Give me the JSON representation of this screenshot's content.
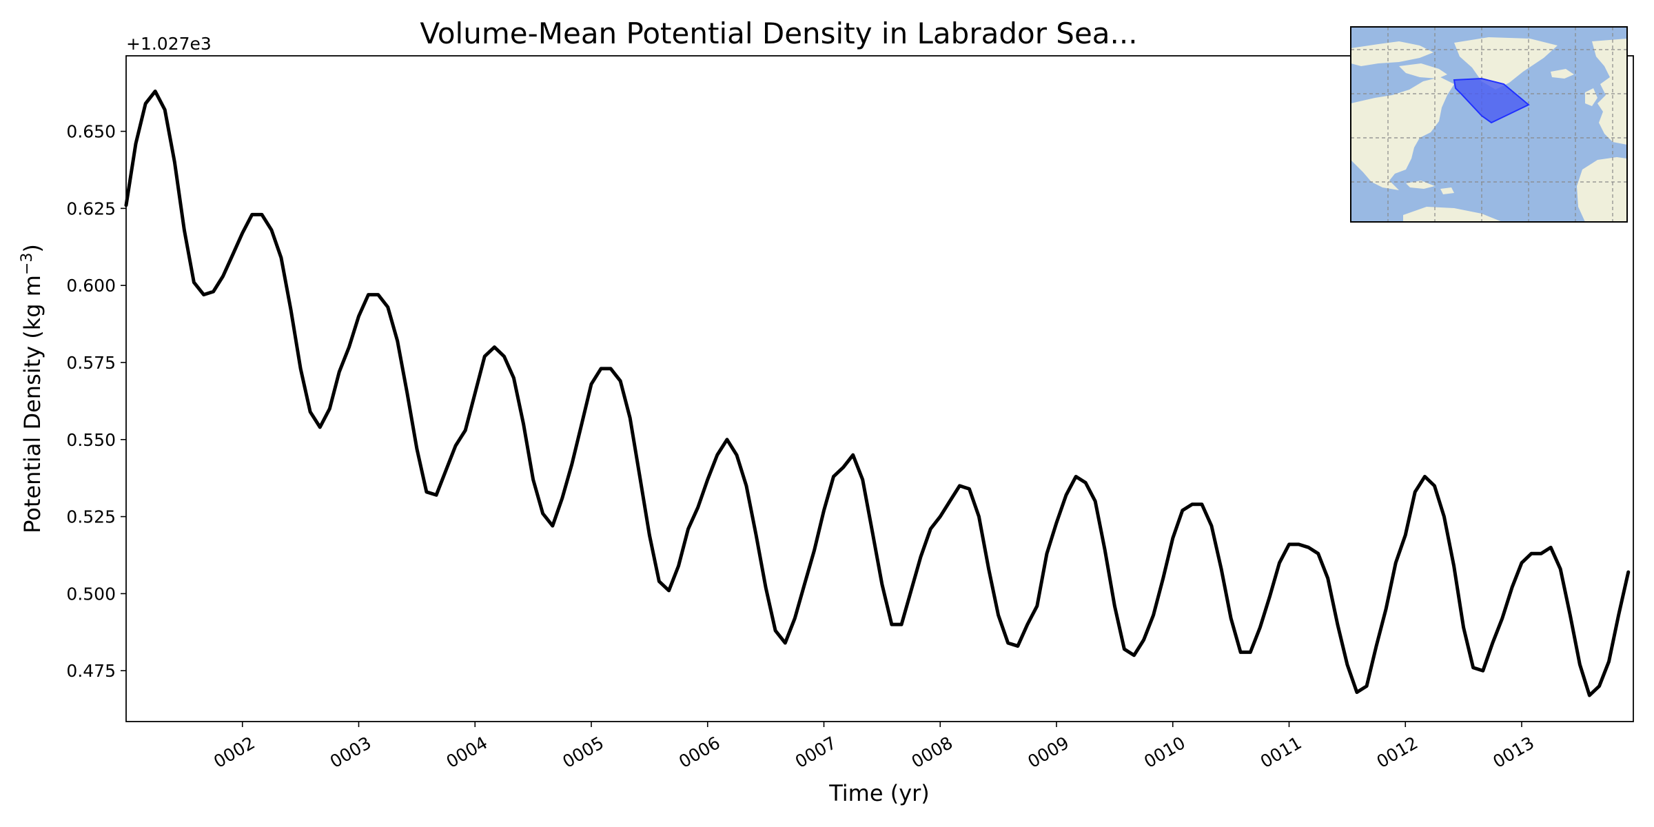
{
  "chart_data": {
    "type": "line",
    "title": "Volume-Mean Potential Density in Labrador Sea...",
    "xlabel": "Time (yr)",
    "ylabel_main": "Potential Density (kg m",
    "ylabel_sup": "−3",
    "ylabel_close": ")",
    "offset_text": "+1.027e3",
    "xlim": [
      1.0,
      13.96
    ],
    "ylim": [
      0.4585,
      0.6745
    ],
    "x_ticks": [
      {
        "value": 2,
        "label": "0002"
      },
      {
        "value": 3,
        "label": "0003"
      },
      {
        "value": 4,
        "label": "0004"
      },
      {
        "value": 5,
        "label": "0005"
      },
      {
        "value": 6,
        "label": "0006"
      },
      {
        "value": 7,
        "label": "0007"
      },
      {
        "value": 8,
        "label": "0008"
      },
      {
        "value": 9,
        "label": "0009"
      },
      {
        "value": 10,
        "label": "0010"
      },
      {
        "value": 11,
        "label": "0011"
      },
      {
        "value": 12,
        "label": "0012"
      },
      {
        "value": 13,
        "label": "0013"
      }
    ],
    "y_ticks": [
      {
        "value": 0.475,
        "label": "0.475"
      },
      {
        "value": 0.5,
        "label": "0.500"
      },
      {
        "value": 0.525,
        "label": "0.525"
      },
      {
        "value": 0.55,
        "label": "0.550"
      },
      {
        "value": 0.575,
        "label": "0.575"
      },
      {
        "value": 0.6,
        "label": "0.600"
      },
      {
        "value": 0.625,
        "label": "0.625"
      },
      {
        "value": 0.65,
        "label": "0.650"
      }
    ],
    "line_color": "#000000",
    "grid": false,
    "series": [
      {
        "x": [
          1.0,
          1.083,
          1.167,
          1.25,
          1.333,
          1.417,
          1.5,
          1.583,
          1.667,
          1.75,
          1.833,
          1.917,
          2.0,
          2.083,
          2.167,
          2.25,
          2.333,
          2.417,
          2.5,
          2.583,
          2.667,
          2.75,
          2.833,
          2.917,
          3.0,
          3.083,
          3.167,
          3.25,
          3.333,
          3.417,
          3.5,
          3.583,
          3.667,
          3.75,
          3.833,
          3.917,
          4.0,
          4.083,
          4.167,
          4.25,
          4.333,
          4.417,
          4.5,
          4.583,
          4.667,
          4.75,
          4.833,
          4.917,
          5.0,
          5.083,
          5.167,
          5.25,
          5.333,
          5.417,
          5.5,
          5.583,
          5.667,
          5.75,
          5.833,
          5.917,
          6.0,
          6.083,
          6.167,
          6.25,
          6.333,
          6.417,
          6.5,
          6.583,
          6.667,
          6.75,
          6.833,
          6.917,
          7.0,
          7.083,
          7.167,
          7.25,
          7.333,
          7.417,
          7.5,
          7.583,
          7.667,
          7.75,
          7.833,
          7.917,
          8.0,
          8.083,
          8.167,
          8.25,
          8.333,
          8.417,
          8.5,
          8.583,
          8.667,
          8.75,
          8.833,
          8.917,
          9.0,
          9.083,
          9.167,
          9.25,
          9.333,
          9.417,
          9.5,
          9.583,
          9.667,
          9.75,
          9.833,
          9.917,
          10.0,
          10.083,
          10.167,
          10.25,
          10.333,
          10.417,
          10.5,
          10.583,
          10.667,
          10.75,
          10.833,
          10.917,
          11.0,
          11.083,
          11.167,
          11.25,
          11.333,
          11.417,
          11.5,
          11.583,
          11.667,
          11.75,
          11.833,
          11.917,
          12.0,
          12.083,
          12.167,
          12.25,
          12.333,
          12.417,
          12.5,
          12.583,
          12.667,
          12.75,
          12.833,
          12.917,
          13.0,
          13.083,
          13.167,
          13.25,
          13.333,
          13.417,
          13.5,
          13.583,
          13.667,
          13.75,
          13.833,
          13.917
        ],
        "y": [
          0.626,
          0.646,
          0.659,
          0.663,
          0.657,
          0.64,
          0.618,
          0.601,
          0.597,
          0.598,
          0.603,
          0.61,
          0.617,
          0.623,
          0.623,
          0.618,
          0.609,
          0.592,
          0.573,
          0.559,
          0.554,
          0.56,
          0.572,
          0.58,
          0.59,
          0.597,
          0.597,
          0.593,
          0.582,
          0.565,
          0.547,
          0.533,
          0.532,
          0.54,
          0.548,
          0.553,
          0.565,
          0.577,
          0.58,
          0.577,
          0.57,
          0.555,
          0.537,
          0.526,
          0.522,
          0.531,
          0.542,
          0.555,
          0.568,
          0.573,
          0.573,
          0.569,
          0.557,
          0.538,
          0.519,
          0.504,
          0.501,
          0.509,
          0.521,
          0.528,
          0.537,
          0.545,
          0.55,
          0.545,
          0.535,
          0.519,
          0.502,
          0.488,
          0.484,
          0.492,
          0.503,
          0.514,
          0.527,
          0.538,
          0.541,
          0.545,
          0.537,
          0.52,
          0.503,
          0.49,
          0.49,
          0.501,
          0.512,
          0.521,
          0.525,
          0.53,
          0.535,
          0.534,
          0.525,
          0.508,
          0.493,
          0.484,
          0.483,
          0.49,
          0.496,
          0.513,
          0.523,
          0.532,
          0.538,
          0.536,
          0.53,
          0.514,
          0.496,
          0.482,
          0.48,
          0.485,
          0.493,
          0.505,
          0.518,
          0.527,
          0.529,
          0.529,
          0.522,
          0.508,
          0.492,
          0.481,
          0.481,
          0.489,
          0.499,
          0.51,
          0.516,
          0.516,
          0.515,
          0.513,
          0.505,
          0.49,
          0.477,
          0.468,
          0.47,
          0.483,
          0.495,
          0.51,
          0.519,
          0.533,
          0.538,
          0.535,
          0.525,
          0.509,
          0.489,
          0.476,
          0.475,
          0.484,
          0.492,
          0.502,
          0.51,
          0.513,
          0.513,
          0.515,
          0.508,
          0.493,
          0.477,
          0.467,
          0.47,
          0.478,
          0.493,
          0.507
        ]
      }
    ]
  },
  "inset_map": {
    "ocean_color": "#99b9e3",
    "land_color": "#efefdb",
    "region_fill": "#4a5cf2",
    "region_edge": "#2030ff"
  }
}
